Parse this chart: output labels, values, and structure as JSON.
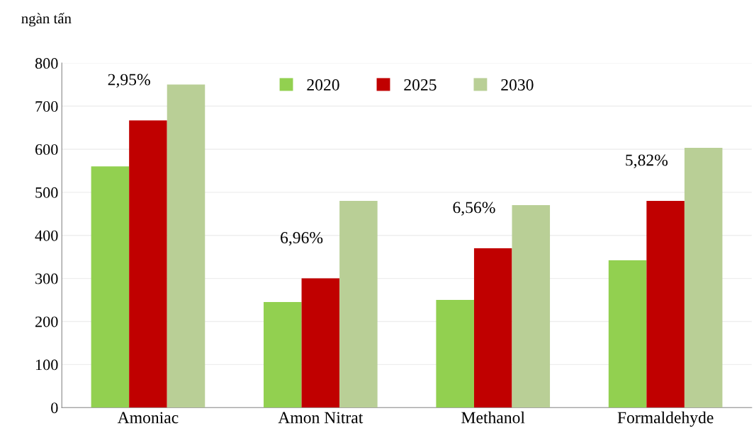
{
  "chart_data": {
    "type": "bar",
    "ylabel": "ngàn tấn",
    "categories": [
      "Amoniac",
      "Amon Nitrat",
      "Methanol",
      "Formaldehyde"
    ],
    "series": [
      {
        "name": "2020",
        "color": "#92d050",
        "values": [
          560,
          245,
          250,
          342
        ]
      },
      {
        "name": "2025",
        "color": "#c00000",
        "values": [
          667,
          300,
          370,
          480
        ]
      },
      {
        "name": "2030",
        "color": "#b9cf96",
        "values": [
          750,
          480,
          470,
          603
        ]
      }
    ],
    "ylim": [
      0,
      800
    ],
    "yticks": [
      0,
      100,
      200,
      300,
      400,
      500,
      600,
      700,
      800
    ],
    "grid": "y",
    "legend": "top",
    "annotations": [
      "2,95%",
      "6,96%",
      "6,56%",
      "5,82%"
    ]
  }
}
